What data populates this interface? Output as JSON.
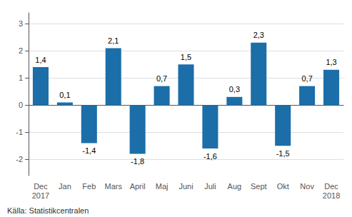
{
  "chart_data": {
    "type": "bar",
    "categories": [
      "Dec\n2017",
      "Jan",
      "Feb",
      "Mars",
      "April",
      "Maj",
      "Juni",
      "Juli",
      "Aug",
      "Sept",
      "Okt",
      "Nov",
      "Dec\n2018"
    ],
    "values": [
      1.4,
      0.1,
      -1.4,
      2.1,
      -1.8,
      0.7,
      1.5,
      -1.6,
      0.3,
      2.3,
      -1.5,
      0.7,
      1.3
    ],
    "value_labels": [
      "1,4",
      "0,1",
      "-1,4",
      "2,1",
      "-1,8",
      "0,7",
      "1,5",
      "-1,6",
      "0,3",
      "2,3",
      "-1,5",
      "0,7",
      "1,3"
    ],
    "data_labels": true,
    "color": "#1B6EA8",
    "ylim": [
      -2.6,
      3.4
    ],
    "yticks": [
      -2,
      -1,
      0,
      1,
      2,
      3
    ],
    "grid": true,
    "annotations": [
      "Källa: Statistikcentralen"
    ]
  }
}
